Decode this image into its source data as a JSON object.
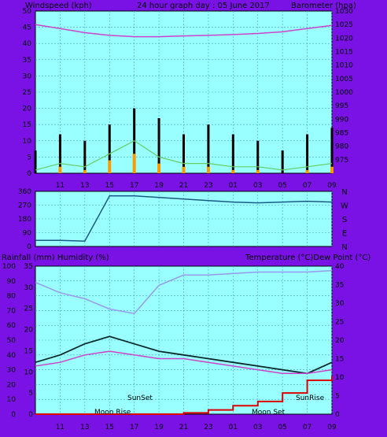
{
  "header": {
    "left_title": "Windspeed (kph)",
    "center_title": "24 hour graph day : 05 June 2017",
    "right_title": "Barometer (hpa)"
  },
  "mid_header": {
    "left_title": "Rainfall (mm)  Humidity (%)",
    "right_title": "Temperature (°C)Dew Point (°C)"
  },
  "colors": {
    "background": "#7a12e6",
    "plot_bg": "#99ffff",
    "grid": "#4aa0c8",
    "baro": "#cc44cc",
    "wind_speed": "#000000",
    "wind_gust": "#66cc66",
    "wind_avg": "#ff9900",
    "dir": "#1a5a88",
    "humidity": "#9999ee",
    "temperature": "#0a2a2a",
    "dewpoint": "#cc44cc",
    "rain": "#dd0000"
  },
  "x_ticks": [
    "11",
    "13",
    "15",
    "17",
    "19",
    "21",
    "23",
    "01",
    "03",
    "05",
    "07",
    "09"
  ],
  "chart_data": [
    {
      "type": "line",
      "title": "24 hour graph day : 05 June 2017",
      "ylabel": "Windspeed (kph)",
      "y2label": "Barometer (hpa)",
      "ylim": [
        0,
        50
      ],
      "y2lim": [
        970,
        1030
      ],
      "yticks": [
        "0",
        "5",
        "10",
        "15",
        "20",
        "25",
        "30",
        "35",
        "40",
        "45",
        "50"
      ],
      "y2ticks": [
        "975",
        "980",
        "985",
        "990",
        "995",
        "1000",
        "1005",
        "1010",
        "1015",
        "1020",
        "1025",
        "1030"
      ],
      "x": [
        "09",
        "11",
        "13",
        "15",
        "17",
        "19",
        "21",
        "23",
        "01",
        "03",
        "05",
        "07",
        "09"
      ],
      "series": [
        {
          "name": "barometer",
          "values": [
            1025,
            1023.5,
            1022,
            1021,
            1020.5,
            1020.5,
            1020.8,
            1021,
            1021.3,
            1021.7,
            1022.3,
            1023.5,
            1024.7
          ]
        },
        {
          "name": "windspeed",
          "values": [
            7,
            12,
            10,
            15,
            20,
            17,
            12,
            15,
            12,
            10,
            7,
            12,
            14
          ]
        },
        {
          "name": "gust",
          "values": [
            1,
            3,
            2,
            6,
            10,
            5,
            3,
            3,
            2,
            2,
            1,
            2,
            3
          ]
        },
        {
          "name": "average",
          "values": [
            0,
            2,
            1,
            4,
            6,
            3,
            2,
            2,
            1,
            1,
            0,
            1,
            2
          ]
        }
      ]
    },
    {
      "type": "line",
      "title": "",
      "ylabel": "",
      "yticks": [
        "0",
        "90",
        "180",
        "270",
        "360"
      ],
      "right_labels": [
        "N",
        "W",
        "S",
        "E",
        "N"
      ],
      "ylim": [
        0,
        360
      ],
      "x": [
        "09",
        "11",
        "13",
        "15",
        "17",
        "19",
        "21",
        "23",
        "01",
        "03",
        "05",
        "07",
        "09"
      ],
      "series": [
        {
          "name": "wind direction",
          "values": [
            40,
            40,
            35,
            330,
            330,
            320,
            310,
            300,
            290,
            285,
            290,
            295,
            290
          ]
        }
      ]
    },
    {
      "type": "line",
      "title": "",
      "ylabel": "Rainfall (mm)  Humidity (%)",
      "y2label": "Temperature (°C)Dew Point (°C)",
      "ylim": [
        0,
        100
      ],
      "yticks": [
        "0",
        "10",
        "20",
        "30",
        "40",
        "50",
        "60",
        "70",
        "80",
        "90",
        "100"
      ],
      "rain_ticks": [
        "0",
        "5",
        "10",
        "15",
        "20",
        "25",
        "30",
        "35"
      ],
      "y2lim": [
        0,
        40
      ],
      "y2ticks": [
        "0",
        "5",
        "10",
        "15",
        "20",
        "25",
        "30",
        "35",
        "40"
      ],
      "x": [
        "09",
        "11",
        "13",
        "15",
        "17",
        "19",
        "21",
        "23",
        "01",
        "03",
        "05",
        "07",
        "09"
      ],
      "series": [
        {
          "name": "humidity",
          "values": [
            89,
            82,
            78,
            71,
            68,
            87,
            94,
            94,
            95,
            96,
            96,
            96,
            97
          ]
        },
        {
          "name": "temperature",
          "values": [
            14,
            16,
            19,
            21,
            19,
            17,
            16,
            15,
            14,
            13,
            12,
            11,
            14
          ]
        },
        {
          "name": "dewpoint",
          "values": [
            13,
            14,
            16,
            17,
            16,
            15,
            15,
            14,
            13,
            12,
            11,
            11,
            12
          ]
        },
        {
          "name": "rainfall",
          "values": [
            0,
            0,
            0,
            0,
            0,
            0,
            0.3,
            1.0,
            2.0,
            3.0,
            5.0,
            8.0,
            9.0
          ]
        }
      ],
      "annotations": [
        "SunSet",
        "Moon Rise",
        "Moon Set",
        "SunRise"
      ]
    }
  ]
}
